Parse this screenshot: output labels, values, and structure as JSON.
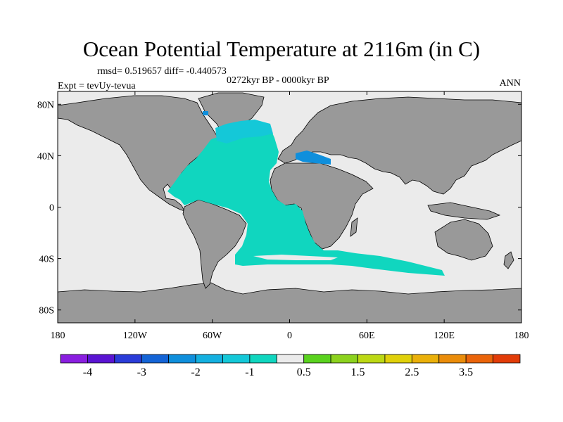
{
  "title": "Ocean Potential Temperature at 2116m (in C)",
  "stats": "rmsd= 0.519657 diff= -0.440573",
  "experiment": "Expt = tevUy-tevua",
  "period": "0272kyr BP - 0000kyr BP",
  "season": "ANN",
  "axes": {
    "x_ticks": [
      "180",
      "120W",
      "60W",
      "0",
      "60E",
      "120E",
      "180"
    ],
    "x_values": [
      -180,
      -120,
      -60,
      0,
      60,
      120,
      180
    ],
    "y_ticks": [
      "80N",
      "40N",
      "0",
      "40S",
      "80S"
    ],
    "y_values": [
      80,
      40,
      0,
      -40,
      -80
    ],
    "lon_range": [
      -180,
      180
    ],
    "lat_range": [
      -90,
      90
    ]
  },
  "colorbar": {
    "colors": [
      "#8a1ee0",
      "#5a14d2",
      "#2a3cd8",
      "#1464d6",
      "#0f8fdc",
      "#14b0e0",
      "#14c8d8",
      "#10d6bf",
      "#ebebeb",
      "#5ad21e",
      "#8cd21e",
      "#bcd814",
      "#e0d00a",
      "#eab00a",
      "#ea8c0a",
      "#ea640a",
      "#e23c08"
    ],
    "labels": [
      "-4",
      "-3",
      "-2",
      "-1",
      "0.5",
      "1.5",
      "2.5",
      "3.5"
    ]
  },
  "palette": {
    "land": "#999999",
    "no_change": "#ebebeb",
    "anomaly_minus_1": "#10d6bf",
    "anomaly_minus_1_5": "#14c8d8",
    "anomaly_minus_2_5": "#0f8fdc"
  }
}
